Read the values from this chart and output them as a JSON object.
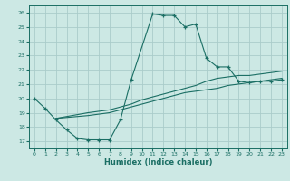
{
  "xlabel": "Humidex (Indice chaleur)",
  "bg_color": "#cce8e4",
  "grid_color": "#aaccca",
  "line_color": "#1a6e64",
  "xlim": [
    -0.5,
    23.5
  ],
  "ylim": [
    16.5,
    26.5
  ],
  "yticks": [
    17,
    18,
    19,
    20,
    21,
    22,
    23,
    24,
    25,
    26
  ],
  "xticks": [
    0,
    1,
    2,
    3,
    4,
    5,
    6,
    7,
    8,
    9,
    10,
    11,
    12,
    13,
    14,
    15,
    16,
    17,
    18,
    19,
    20,
    21,
    22,
    23
  ],
  "series1_x": [
    0,
    1,
    2,
    3,
    4,
    5,
    6,
    7,
    8,
    9,
    11,
    12,
    13,
    14,
    15,
    16,
    17,
    18,
    19,
    20,
    21,
    22,
    23
  ],
  "series1_y": [
    20.0,
    19.3,
    18.5,
    17.8,
    17.2,
    17.1,
    17.1,
    17.1,
    18.5,
    21.3,
    25.9,
    25.8,
    25.8,
    25.0,
    25.2,
    22.8,
    22.2,
    22.2,
    21.2,
    21.1,
    21.2,
    21.2,
    21.3
  ],
  "series2_x": [
    2,
    5,
    7,
    8,
    9,
    10,
    11,
    12,
    13,
    14,
    15,
    16,
    17,
    18,
    19,
    20,
    21,
    22,
    23
  ],
  "series2_y": [
    18.6,
    19.0,
    19.2,
    19.4,
    19.6,
    19.9,
    20.1,
    20.3,
    20.5,
    20.7,
    20.9,
    21.2,
    21.4,
    21.5,
    21.6,
    21.6,
    21.7,
    21.8,
    21.9
  ],
  "series3_x": [
    2,
    5,
    7,
    8,
    9,
    10,
    11,
    12,
    13,
    14,
    15,
    16,
    17,
    18,
    19,
    20,
    21,
    22,
    23
  ],
  "series3_y": [
    18.6,
    18.8,
    19.0,
    19.2,
    19.4,
    19.6,
    19.8,
    20.0,
    20.2,
    20.4,
    20.5,
    20.6,
    20.7,
    20.9,
    21.0,
    21.1,
    21.2,
    21.3,
    21.4
  ]
}
